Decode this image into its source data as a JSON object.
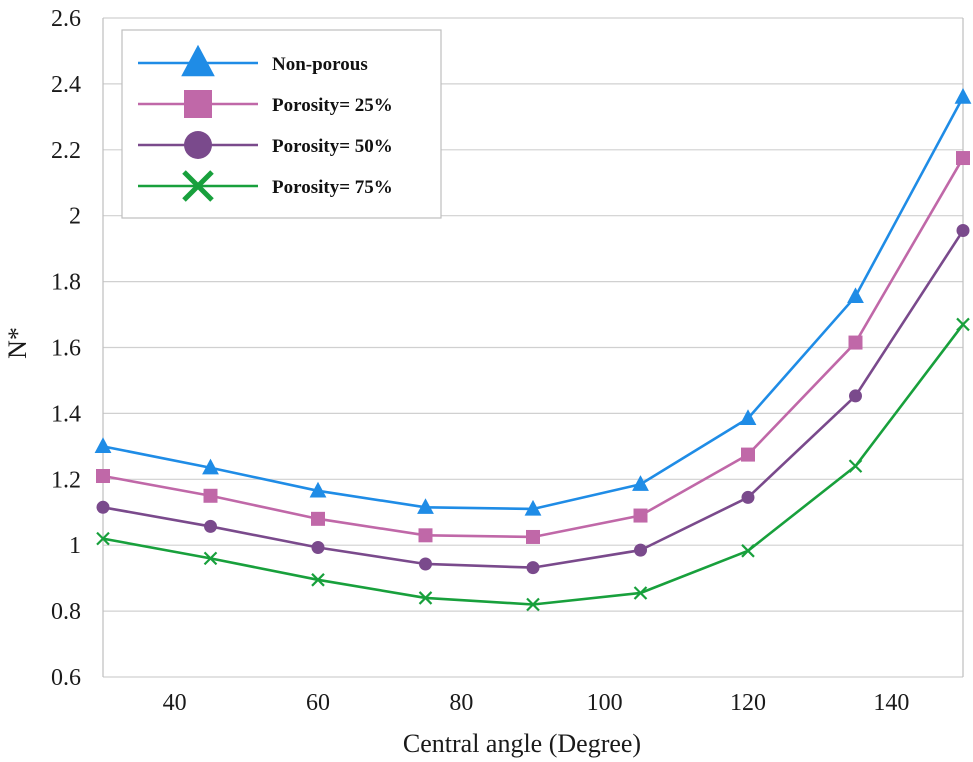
{
  "chart_data": {
    "type": "line",
    "title": "",
    "xlabel": "Central angle (Degree)",
    "ylabel": "N*",
    "xlim": [
      30,
      150
    ],
    "ylim": [
      0.6,
      2.6
    ],
    "xticks": [
      40,
      60,
      80,
      100,
      120,
      140
    ],
    "xtick_labels": [
      "40",
      "60",
      "80",
      "100",
      "120",
      "140"
    ],
    "yticks": [
      0.6,
      0.8,
      1.0,
      1.2,
      1.4,
      1.6,
      1.8,
      2.0,
      2.2,
      2.4,
      2.6
    ],
    "ytick_labels": [
      "0.6",
      "0.8",
      "1",
      "1.2",
      "1.4",
      "1.6",
      "1.8",
      "2",
      "2.2",
      "2.4",
      "2.6"
    ],
    "grid": true,
    "legend_position": "top-left",
    "x": [
      30,
      45,
      60,
      75,
      90,
      105,
      120,
      135,
      150
    ],
    "series": [
      {
        "name": "Non-porous",
        "marker": "triangle",
        "color": "#1f8ce6",
        "values": [
          1.3,
          1.235,
          1.165,
          1.115,
          1.11,
          1.185,
          1.385,
          1.755,
          2.36
        ]
      },
      {
        "name": "Porosity= 25%",
        "marker": "square",
        "color": "#c068a8",
        "values": [
          1.21,
          1.15,
          1.08,
          1.03,
          1.025,
          1.09,
          1.275,
          1.615,
          2.175
        ]
      },
      {
        "name": "Porosity= 50%",
        "marker": "circle",
        "color": "#7a4a8c",
        "values": [
          1.115,
          1.057,
          0.993,
          0.943,
          0.932,
          0.985,
          1.145,
          1.453,
          1.955
        ]
      },
      {
        "name": "Porosity= 75%",
        "marker": "x",
        "color": "#18a03c",
        "values": [
          1.02,
          0.96,
          0.895,
          0.84,
          0.82,
          0.855,
          0.983,
          1.24,
          1.67
        ]
      }
    ]
  }
}
